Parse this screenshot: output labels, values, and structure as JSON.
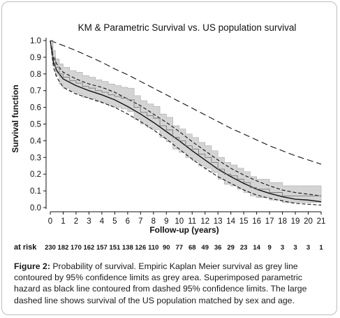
{
  "chart_data": {
    "type": "line",
    "title": "KM & Parametric Survival  vs. US population survival",
    "xlabel": "Follow-up (years)",
    "ylabel": "Survival function",
    "xlim": [
      0,
      21
    ],
    "ylim": [
      0,
      1.0
    ],
    "x_ticks": [
      "0",
      "1",
      "2",
      "3",
      "4",
      "5",
      "6",
      "7",
      "8",
      "9",
      "10",
      "11",
      "12",
      "13",
      "14",
      "15",
      "16",
      "17",
      "18",
      "19",
      "20",
      "21"
    ],
    "y_ticks": [
      "0.0",
      "0.1",
      "0.2",
      "0.3",
      "0.4",
      "0.5",
      "0.6",
      "0.7",
      "0.8",
      "0.9",
      "1.0"
    ],
    "grid": false,
    "series": [
      {
        "role": "us_population",
        "style": "long-dashed",
        "color": "#111111",
        "x": [
          0,
          1,
          2,
          3,
          4,
          5,
          6,
          7,
          8,
          9,
          10,
          11,
          12,
          13,
          14,
          15,
          16,
          17,
          18,
          19,
          20,
          21
        ],
        "y": [
          1.0,
          0.97,
          0.94,
          0.905,
          0.87,
          0.83,
          0.795,
          0.755,
          0.715,
          0.675,
          0.635,
          0.595,
          0.555,
          0.515,
          0.475,
          0.44,
          0.405,
          0.37,
          0.34,
          0.31,
          0.285,
          0.26
        ]
      },
      {
        "role": "parametric_hazard",
        "style": "solid",
        "color": "#111111",
        "x": [
          0,
          0.25,
          0.5,
          1,
          2,
          3,
          4,
          5,
          6,
          7,
          8,
          9,
          10,
          11,
          12,
          13,
          14,
          15,
          16,
          17,
          18,
          19,
          20,
          21
        ],
        "y": [
          1.0,
          0.87,
          0.82,
          0.77,
          0.73,
          0.7,
          0.675,
          0.645,
          0.605,
          0.56,
          0.51,
          0.455,
          0.4,
          0.34,
          0.285,
          0.23,
          0.185,
          0.145,
          0.11,
          0.085,
          0.065,
          0.05,
          0.045,
          0.035
        ]
      },
      {
        "role": "parametric_ci_upper",
        "style": "dashed",
        "color": "#111111",
        "x": [
          0,
          0.25,
          0.5,
          1,
          2,
          3,
          4,
          5,
          6,
          7,
          8,
          9,
          10,
          11,
          12,
          13,
          14,
          15,
          16,
          17,
          18,
          19,
          20,
          21
        ],
        "y": [
          1.0,
          0.9,
          0.86,
          0.81,
          0.77,
          0.74,
          0.72,
          0.69,
          0.65,
          0.61,
          0.56,
          0.51,
          0.455,
          0.395,
          0.34,
          0.285,
          0.235,
          0.195,
          0.16,
          0.13,
          0.105,
          0.09,
          0.08,
          0.07
        ]
      },
      {
        "role": "parametric_ci_lower",
        "style": "dashed",
        "color": "#111111",
        "x": [
          0,
          0.25,
          0.5,
          1,
          2,
          3,
          4,
          5,
          6,
          7,
          8,
          9,
          10,
          11,
          12,
          13,
          14,
          15,
          16,
          17,
          18,
          19,
          20,
          21
        ],
        "y": [
          1.0,
          0.84,
          0.78,
          0.72,
          0.68,
          0.655,
          0.63,
          0.6,
          0.56,
          0.515,
          0.465,
          0.41,
          0.35,
          0.29,
          0.235,
          0.185,
          0.145,
          0.105,
          0.075,
          0.055,
          0.04,
          0.025,
          0.02,
          0.015
        ]
      },
      {
        "role": "kaplan_meier",
        "style": "step",
        "color": "#7a7a7a",
        "x": [
          0,
          0.2,
          0.4,
          0.7,
          1,
          1.5,
          2,
          2.5,
          3,
          3.5,
          4,
          4.5,
          5,
          5.5,
          6,
          6.5,
          7,
          7.5,
          8,
          8.5,
          9,
          9.5,
          10,
          10.5,
          11,
          11.5,
          12,
          12.5,
          13,
          13.5,
          14,
          14.5,
          15,
          15.5,
          16,
          17,
          18,
          20,
          21
        ],
        "y": [
          1.0,
          0.9,
          0.84,
          0.8,
          0.78,
          0.76,
          0.745,
          0.725,
          0.715,
          0.7,
          0.69,
          0.675,
          0.665,
          0.655,
          0.645,
          0.6,
          0.57,
          0.55,
          0.535,
          0.49,
          0.465,
          0.42,
          0.4,
          0.37,
          0.35,
          0.32,
          0.3,
          0.27,
          0.23,
          0.2,
          0.19,
          0.17,
          0.15,
          0.12,
          0.11,
          0.09,
          0.07,
          0.07,
          0.07
        ]
      },
      {
        "role": "kaplan_meier_ci_band",
        "style": "grey-area",
        "color": "#d4d4d4",
        "x": [
          0,
          0.2,
          0.4,
          0.7,
          1,
          1.5,
          2,
          2.5,
          3,
          3.5,
          4,
          4.5,
          5,
          5.5,
          6,
          6.5,
          7,
          7.5,
          8,
          8.5,
          9,
          9.5,
          10,
          10.5,
          11,
          11.5,
          12,
          12.5,
          13,
          13.5,
          14,
          14.5,
          15,
          15.5,
          16,
          17,
          18,
          20,
          21
        ],
        "upper": [
          1.0,
          0.94,
          0.89,
          0.86,
          0.84,
          0.82,
          0.81,
          0.79,
          0.78,
          0.765,
          0.755,
          0.74,
          0.73,
          0.72,
          0.715,
          0.67,
          0.64,
          0.62,
          0.605,
          0.56,
          0.54,
          0.49,
          0.47,
          0.44,
          0.42,
          0.39,
          0.37,
          0.34,
          0.3,
          0.27,
          0.255,
          0.235,
          0.215,
          0.185,
          0.17,
          0.15,
          0.13,
          0.13,
          0.13
        ],
        "lower": [
          1.0,
          0.86,
          0.79,
          0.74,
          0.715,
          0.695,
          0.68,
          0.66,
          0.65,
          0.635,
          0.625,
          0.61,
          0.6,
          0.59,
          0.575,
          0.53,
          0.5,
          0.48,
          0.465,
          0.42,
          0.395,
          0.35,
          0.33,
          0.3,
          0.28,
          0.25,
          0.235,
          0.21,
          0.17,
          0.14,
          0.13,
          0.11,
          0.09,
          0.07,
          0.06,
          0.045,
          0.03,
          0.03,
          0.03
        ]
      }
    ],
    "at_risk": {
      "label": "at risk",
      "values": [
        "230",
        "182",
        "170",
        "162",
        "157",
        "151",
        "138",
        "126",
        "110",
        "90",
        "77",
        "68",
        "49",
        "36",
        "29",
        "23",
        "14",
        "9",
        "3",
        "3",
        "3",
        "1"
      ]
    }
  },
  "caption": {
    "label": "Figure 2:",
    "text": " Probability of survival. Empiric Kaplan Meier survival as grey line contoured by 95% confidence limits as grey area. Superimposed parametric hazard as black line contoured from dashed 95% confidence limits. The large dashed line shows survival of the US population matched by sex and age."
  }
}
